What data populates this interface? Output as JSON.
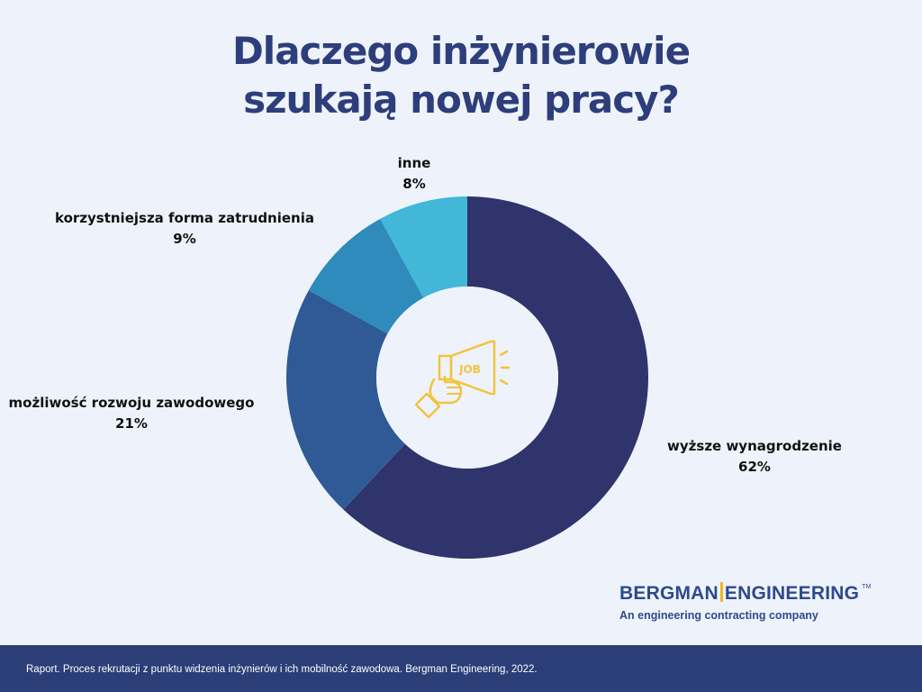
{
  "chart_data": {
    "type": "pie",
    "variant": "donut",
    "title_lines": [
      "Dlaczego inżynierowie",
      "szukają nowej pracy?"
    ],
    "slices": [
      {
        "label": "wyższe wynagrodzenie",
        "value": 62,
        "value_label": "62%",
        "color": "#30346c"
      },
      {
        "label": "możliwość rozwoju zawodowego",
        "value": 21,
        "value_label": "21%",
        "color": "#2f5a95"
      },
      {
        "label": "korzystniejsza forma zatrudnienia",
        "value": 9,
        "value_label": "9%",
        "color": "#2e8bbb"
      },
      {
        "label": "inne",
        "value": 8,
        "value_label": "8%",
        "color": "#42b7d8"
      }
    ],
    "center_icon": "megaphone-job-icon",
    "center_icon_text": "JOB",
    "center_icon_color": "#f2c33f"
  },
  "brand": {
    "name_left": "BERGMAN",
    "name_right": "ENGINEERING",
    "trademark": "TM",
    "tagline": "An engineering contracting company"
  },
  "footer": {
    "text": "Raport. Proces rekrutacji z punktu widzenia inżynierów i ich mobilność zawodowa. Bergman Engineering, 2022."
  },
  "colors": {
    "background": "#eef3fb",
    "title": "#2d3e7b",
    "footer_bg": "#2c3e78",
    "brand": "#2e4a8c",
    "brand_accent": "#f2b71f"
  }
}
